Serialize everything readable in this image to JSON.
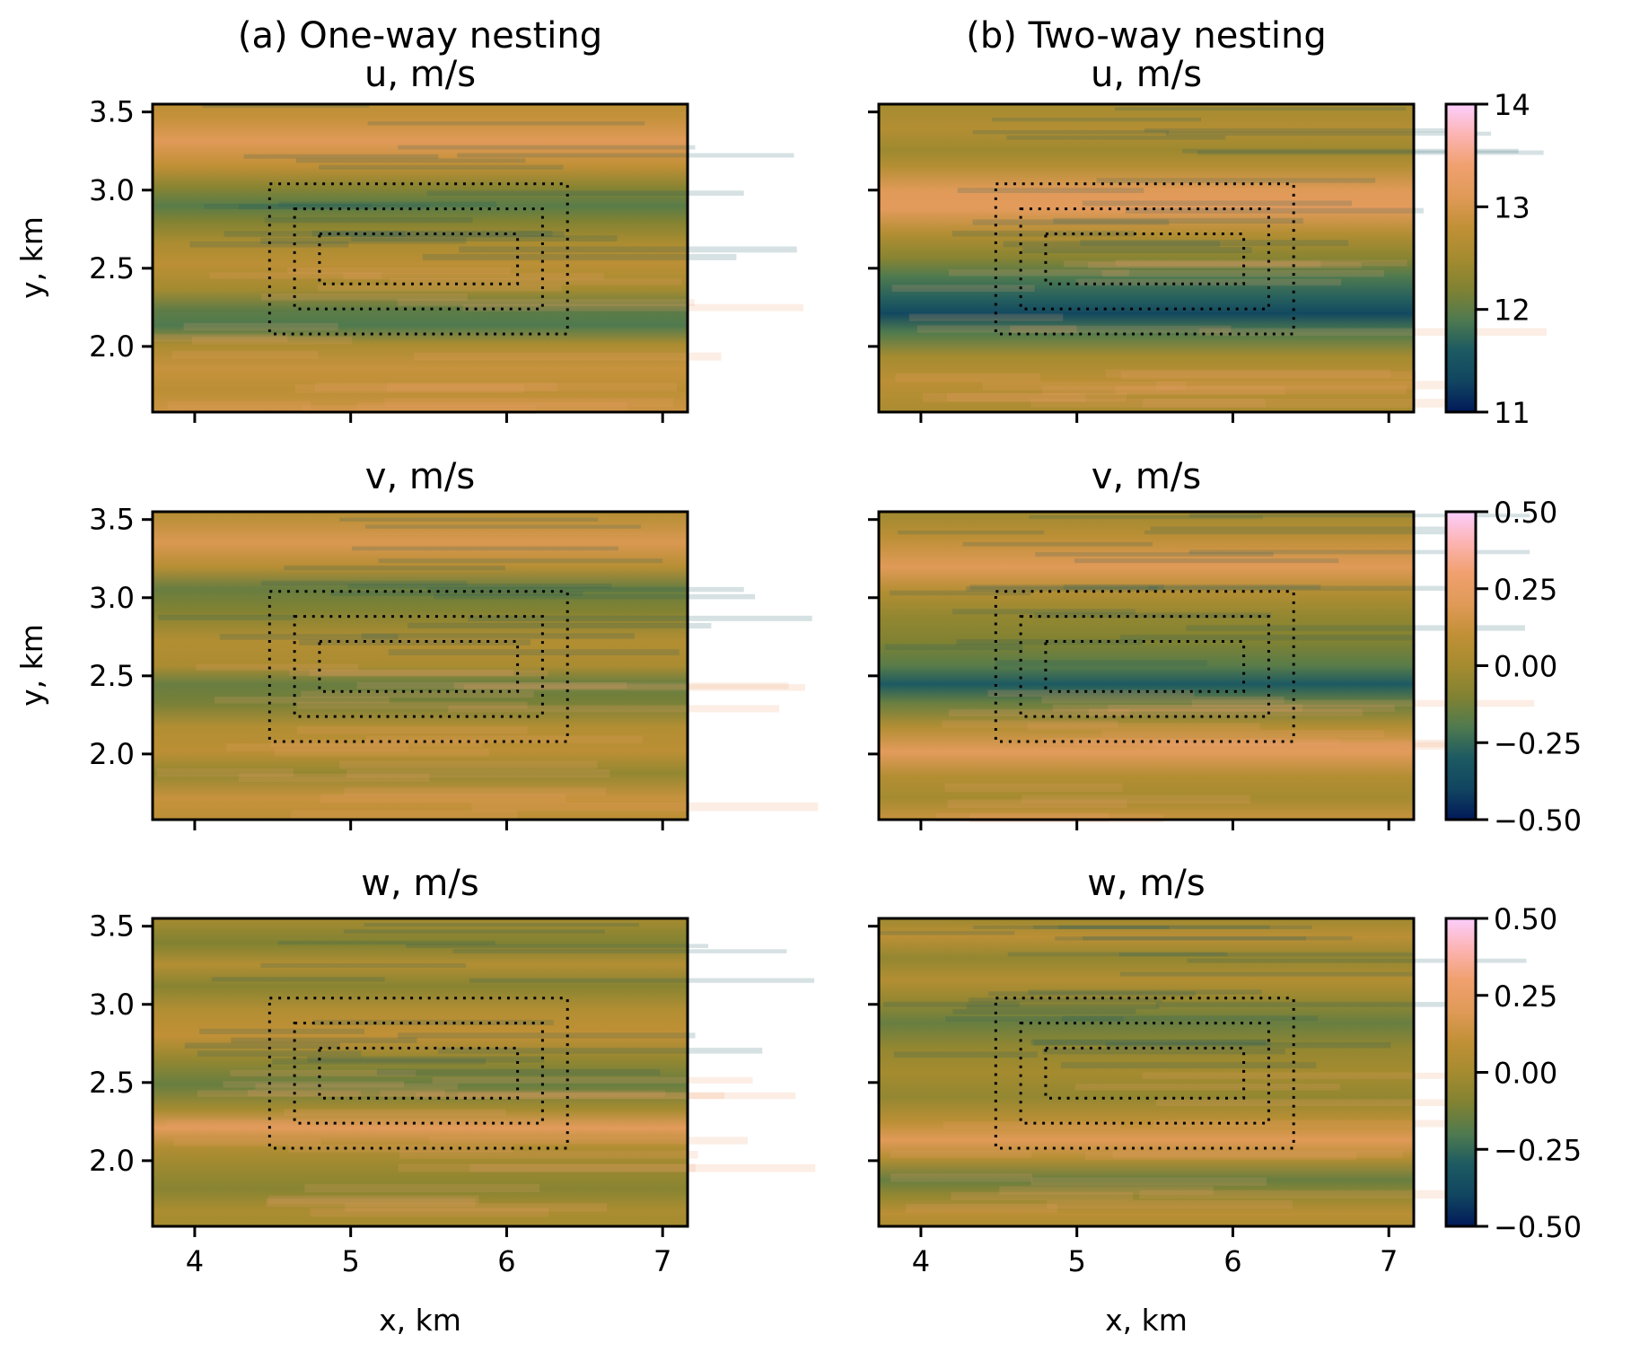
{
  "chart_data": {
    "type": "heatmap",
    "layout": "3 rows x 2 columns with one colorbar per row",
    "column_titles": [
      "(a) One-way nesting",
      "(b) Two-way nesting"
    ],
    "rows": [
      {
        "variable": "u",
        "title": "u, m/s",
        "colorbar": {
          "range": [
            11,
            14
          ],
          "ticks": [
            "11",
            "12",
            "13",
            "14"
          ]
        }
      },
      {
        "variable": "v",
        "title": "v, m/s",
        "colorbar": {
          "range": [
            -0.5,
            0.5
          ],
          "ticks": [
            "−0.50",
            "−0.25",
            "0.00",
            "0.25",
            "0.50"
          ]
        }
      },
      {
        "variable": "w",
        "title": "w, m/s",
        "colorbar": {
          "range": [
            -0.5,
            0.5
          ],
          "ticks": [
            "−0.50",
            "−0.25",
            "0.00",
            "0.25",
            "0.50"
          ]
        }
      }
    ],
    "xlabel": "x, km",
    "ylabel": "y, km",
    "xlim": [
      3.73,
      7.16
    ],
    "ylim": [
      1.58,
      3.55
    ],
    "xticks": [
      4,
      5,
      6,
      7
    ],
    "xtick_labels": [
      "4",
      "5",
      "6",
      "7"
    ],
    "yticks": [
      2.0,
      2.5,
      3.0,
      3.5
    ],
    "ytick_labels": [
      "2.0",
      "2.5",
      "3.0",
      "3.5"
    ],
    "colormap": "batlow",
    "colormap_stops": [
      "#011959",
      "#114560",
      "#1c5a62",
      "#4f7a4f",
      "#818232",
      "#a58b30",
      "#c19036",
      "#e09a58",
      "#f0a06e",
      "#fcb4b2",
      "#fccefd"
    ],
    "nested_domains": [
      {
        "name": "outer",
        "x": [
          4.48,
          6.39
        ],
        "y": [
          2.08,
          3.04
        ],
        "style": "dotted"
      },
      {
        "name": "middle",
        "x": [
          4.64,
          6.23
        ],
        "y": [
          2.24,
          2.88
        ],
        "style": "dotted"
      },
      {
        "name": "inner",
        "x": [
          4.8,
          6.07
        ],
        "y": [
          2.4,
          2.72
        ],
        "style": "dotted"
      }
    ],
    "grid": false,
    "legend": "none"
  }
}
